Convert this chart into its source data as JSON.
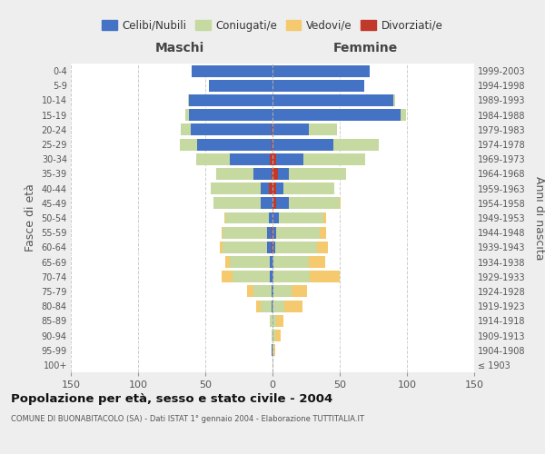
{
  "age_groups": [
    "100+",
    "95-99",
    "90-94",
    "85-89",
    "80-84",
    "75-79",
    "70-74",
    "65-69",
    "60-64",
    "55-59",
    "50-54",
    "45-49",
    "40-44",
    "35-39",
    "30-34",
    "25-29",
    "20-24",
    "15-19",
    "10-14",
    "5-9",
    "0-4"
  ],
  "birth_years": [
    "≤ 1903",
    "1904-1908",
    "1909-1913",
    "1914-1918",
    "1919-1923",
    "1924-1928",
    "1929-1933",
    "1934-1938",
    "1939-1943",
    "1944-1948",
    "1949-1953",
    "1954-1958",
    "1959-1963",
    "1964-1968",
    "1969-1973",
    "1974-1978",
    "1979-1983",
    "1984-1988",
    "1989-1993",
    "1994-1998",
    "1999-2003"
  ],
  "maschi": {
    "celibi": [
      0,
      1,
      0,
      0,
      1,
      1,
      2,
      2,
      3,
      3,
      3,
      9,
      6,
      13,
      30,
      55,
      60,
      62,
      62,
      47,
      60
    ],
    "coniugati": [
      0,
      0,
      1,
      2,
      8,
      13,
      28,
      30,
      33,
      33,
      32,
      35,
      37,
      28,
      25,
      13,
      7,
      3,
      1,
      0,
      0
    ],
    "vedovi": [
      0,
      0,
      0,
      0,
      3,
      5,
      8,
      3,
      2,
      1,
      1,
      0,
      0,
      0,
      0,
      0,
      0,
      0,
      0,
      0,
      0
    ],
    "divorziati": [
      0,
      0,
      0,
      0,
      0,
      0,
      0,
      0,
      1,
      1,
      0,
      0,
      3,
      1,
      2,
      1,
      1,
      0,
      0,
      0,
      0
    ]
  },
  "femmine": {
    "nubili": [
      0,
      0,
      0,
      0,
      0,
      1,
      1,
      1,
      2,
      3,
      4,
      9,
      5,
      8,
      20,
      45,
      27,
      95,
      90,
      68,
      72
    ],
    "coniugate": [
      0,
      1,
      2,
      3,
      9,
      13,
      27,
      26,
      31,
      32,
      33,
      38,
      38,
      43,
      46,
      34,
      21,
      4,
      1,
      0,
      0
    ],
    "vedove": [
      0,
      1,
      4,
      5,
      13,
      12,
      22,
      12,
      8,
      5,
      2,
      1,
      0,
      0,
      0,
      0,
      0,
      0,
      0,
      0,
      0
    ],
    "divorziate": [
      0,
      0,
      0,
      0,
      0,
      0,
      0,
      0,
      0,
      0,
      1,
      3,
      3,
      4,
      3,
      0,
      0,
      0,
      0,
      0,
      0
    ]
  },
  "colors": {
    "celibi_nubili": "#4472C4",
    "coniugati": "#C5D9A0",
    "vedovi": "#F5C96E",
    "divorziati": "#C0392B"
  },
  "xlim": 150,
  "title": "Popolazione per età, sesso e stato civile - 2004",
  "subtitle": "COMUNE DI BUONABITACOLO (SA) - Dati ISTAT 1° gennaio 2004 - Elaborazione TUTTITALIA.IT",
  "ylabel_left": "Fasce di età",
  "ylabel_right": "Anni di nascita",
  "xlabel_maschi": "Maschi",
  "xlabel_femmine": "Femmine",
  "legend_labels": [
    "Celibi/Nubili",
    "Coniugati/e",
    "Vedovi/e",
    "Divorziati/e"
  ],
  "bg_color": "#eeeeee",
  "plot_bg_color": "#ffffff"
}
